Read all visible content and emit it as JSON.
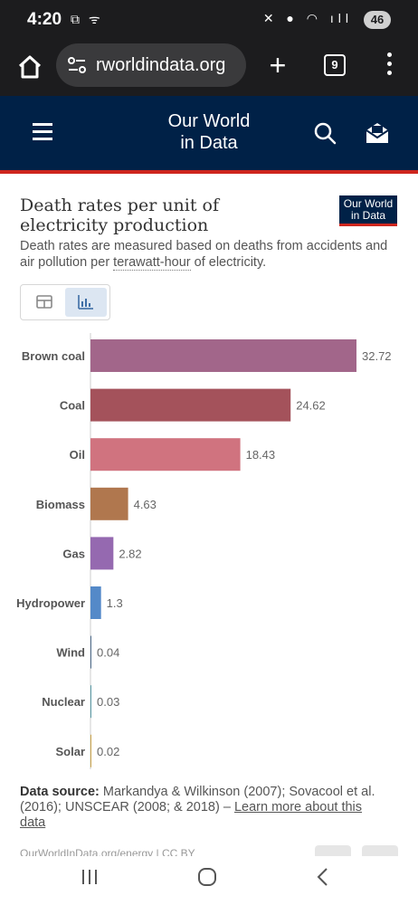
{
  "status_bar": {
    "time": "4:20",
    "battery": "46"
  },
  "browser": {
    "url": "rworldindata.org",
    "tab_count": "9"
  },
  "site_header": {
    "title_line1": "Our World",
    "title_line2": "in Data"
  },
  "chart_card": {
    "title": "Death rates per unit of electricity production",
    "logo_line1": "Our World",
    "logo_line2": "in Data",
    "subtitle_before": "Death rates are measured based on deaths from accidents and air pollution per ",
    "subtitle_term": "terawatt-hour",
    "subtitle_after": " of electricity.",
    "data_source_label": "Data source:",
    "data_source_text": " Markandya & Wilkinson (2007); Sovacool et al. (2016); UNSCEAR (2008; & 2018) – ",
    "data_source_link": "Learn more about this data",
    "footer_meta": "OurWorldInData.org/energy | CC BY"
  },
  "colors": {
    "header_bg": "#002147",
    "accent_red": "#ce261e",
    "active_toggle": "#dce6f2"
  },
  "chart_data": {
    "type": "bar",
    "orientation": "horizontal",
    "categories": [
      "Brown coal",
      "Coal",
      "Oil",
      "Biomass",
      "Gas",
      "Hydropower",
      "Wind",
      "Nuclear",
      "Solar"
    ],
    "values": [
      32.72,
      24.62,
      18.43,
      4.63,
      2.82,
      1.3,
      0.04,
      0.03,
      0.02
    ],
    "value_labels": [
      "32.72",
      "24.62",
      "18.43",
      "4.63",
      "2.82",
      "1.3",
      "0.04",
      "0.03",
      "0.02"
    ],
    "colors": [
      "#a2668a",
      "#a4525b",
      "#d0737f",
      "#b0774e",
      "#9569b0",
      "#5489c8",
      "#4e6b8a",
      "#5a9aa6",
      "#c9a24a"
    ],
    "title": "",
    "xlabel": "",
    "ylabel": "",
    "xlim": [
      0,
      32.72
    ],
    "grid": false,
    "legend": "none"
  }
}
